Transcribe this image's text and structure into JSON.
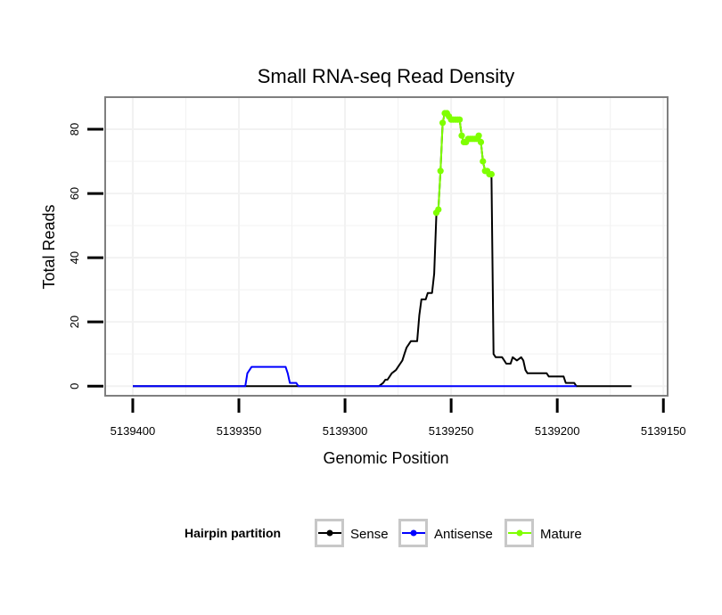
{
  "chart_data": {
    "type": "line",
    "title": "Small RNA-seq Read Density",
    "xlabel": "Genomic Position",
    "ylabel": "Total Reads",
    "x_reversed": true,
    "xlim": [
      5139413,
      5139148
    ],
    "ylim": [
      -3,
      90
    ],
    "x_ticks": [
      5139400,
      5139350,
      5139300,
      5139250,
      5139200,
      5139150
    ],
    "x_tick_labels": [
      "5139400",
      "5139350",
      "5139300",
      "5139250",
      "5139200",
      "5139150"
    ],
    "y_ticks": [
      0,
      20,
      40,
      60,
      80
    ],
    "y_tick_labels": [
      "0",
      "20",
      "40",
      "60",
      "80"
    ],
    "grid": true,
    "legend": {
      "title": "Hairpin partition",
      "position": "bottom",
      "entries": [
        {
          "label": "Sense",
          "color": "#000000"
        },
        {
          "label": "Antisense",
          "color": "#0000ff"
        },
        {
          "label": "Mature",
          "color": "#7fff00"
        }
      ]
    },
    "series": [
      {
        "name": "Sense",
        "color": "#000000",
        "points": [
          [
            5139400,
            0
          ],
          [
            5139284,
            0
          ],
          [
            5139282,
            1
          ],
          [
            5139281,
            2
          ],
          [
            5139280,
            2
          ],
          [
            5139279,
            3
          ],
          [
            5139278,
            4
          ],
          [
            5139276,
            5
          ],
          [
            5139275,
            6
          ],
          [
            5139274,
            7
          ],
          [
            5139273,
            8
          ],
          [
            5139272,
            10
          ],
          [
            5139271,
            12
          ],
          [
            5139270,
            13
          ],
          [
            5139269,
            14
          ],
          [
            5139266,
            14
          ],
          [
            5139265,
            22
          ],
          [
            5139264,
            27
          ],
          [
            5139262,
            27
          ],
          [
            5139261,
            29
          ],
          [
            5139259,
            29
          ],
          [
            5139258,
            35
          ],
          [
            5139257,
            53
          ],
          [
            5139256,
            55
          ],
          [
            5139255,
            67
          ],
          [
            5139254,
            82
          ],
          [
            5139253,
            85
          ],
          [
            5139251,
            85
          ],
          [
            5139250,
            83
          ],
          [
            5139246,
            83
          ],
          [
            5139245,
            78
          ],
          [
            5139244,
            76
          ],
          [
            5139242,
            77
          ],
          [
            5139238,
            77
          ],
          [
            5139237,
            78
          ],
          [
            5139236,
            76
          ],
          [
            5139235,
            70
          ],
          [
            5139234,
            67
          ],
          [
            5139233,
            67
          ],
          [
            5139232,
            66
          ],
          [
            5139231,
            65
          ],
          [
            5139230,
            10
          ],
          [
            5139229,
            9
          ],
          [
            5139226,
            9
          ],
          [
            5139225,
            8
          ],
          [
            5139224,
            7
          ],
          [
            5139222,
            7
          ],
          [
            5139221,
            9
          ],
          [
            5139219,
            8
          ],
          [
            5139217,
            9
          ],
          [
            5139216,
            8
          ],
          [
            5139215,
            5
          ],
          [
            5139214,
            4
          ],
          [
            5139205,
            4
          ],
          [
            5139204,
            3
          ],
          [
            5139197,
            3
          ],
          [
            5139196,
            1
          ],
          [
            5139192,
            1
          ],
          [
            5139191,
            0
          ],
          [
            5139165,
            0
          ]
        ]
      },
      {
        "name": "Antisense",
        "color": "#0000ff",
        "points": [
          [
            5139400,
            0
          ],
          [
            5139347,
            0
          ],
          [
            5139346,
            4
          ],
          [
            5139345,
            5
          ],
          [
            5139344,
            6
          ],
          [
            5139328,
            6
          ],
          [
            5139327,
            4
          ],
          [
            5139326,
            1
          ],
          [
            5139323,
            1
          ],
          [
            5139322,
            0
          ],
          [
            5139191,
            0
          ]
        ]
      },
      {
        "name": "Mature",
        "color": "#7fff00",
        "points": [
          [
            5139257,
            54
          ],
          [
            5139256,
            55
          ],
          [
            5139255,
            67
          ],
          [
            5139254,
            82
          ],
          [
            5139253,
            85
          ],
          [
            5139252,
            85
          ],
          [
            5139251,
            84
          ],
          [
            5139250,
            83
          ],
          [
            5139249,
            83
          ],
          [
            5139248,
            83
          ],
          [
            5139247,
            83
          ],
          [
            5139246,
            83
          ],
          [
            5139245,
            78
          ],
          [
            5139244,
            76
          ],
          [
            5139243,
            76
          ],
          [
            5139242,
            77
          ],
          [
            5139241,
            77
          ],
          [
            5139240,
            77
          ],
          [
            5139239,
            77
          ],
          [
            5139238,
            77
          ],
          [
            5139237,
            78
          ],
          [
            5139236,
            76
          ],
          [
            5139235,
            70
          ],
          [
            5139234,
            67
          ],
          [
            5139233,
            67
          ],
          [
            5139232,
            66
          ],
          [
            5139231,
            66
          ]
        ]
      }
    ]
  }
}
